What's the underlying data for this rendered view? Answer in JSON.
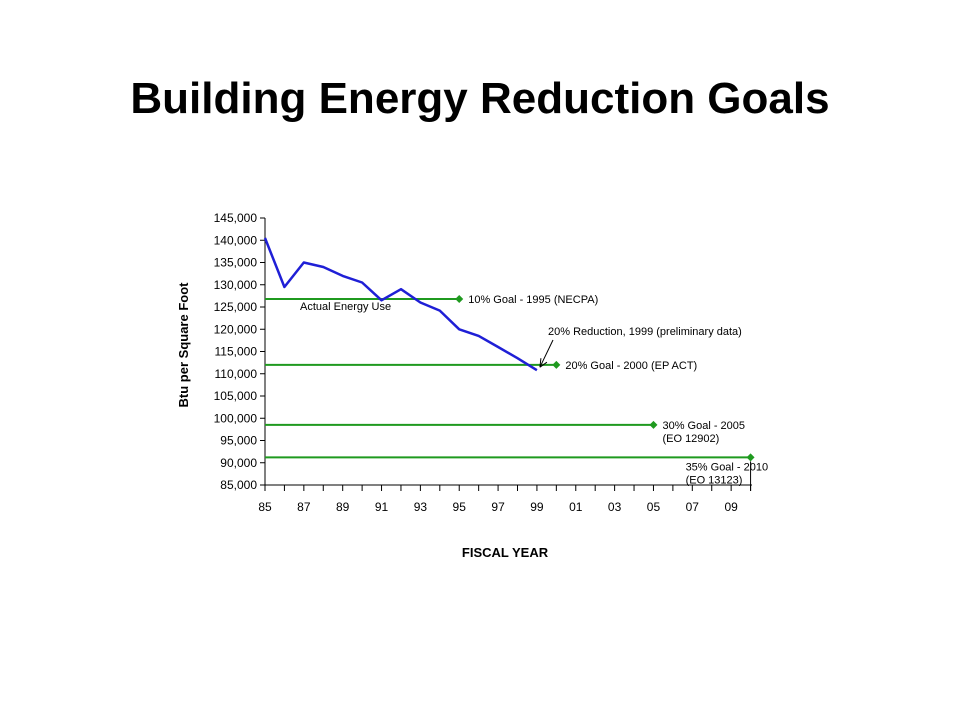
{
  "slide": {
    "title": "Building Energy Reduction Goals"
  },
  "colors": {
    "actual_line": "#1f1fd6",
    "goal_line": "#1f9a1f",
    "axis": "#000000"
  },
  "chart_data": {
    "type": "line",
    "title": "",
    "xlabel": "FISCAL YEAR",
    "ylabel": "Btu per Square Foot",
    "xlim": [
      1985,
      2011
    ],
    "ylim": [
      85000,
      145000
    ],
    "x_tick_labels": [
      "85",
      "87",
      "89",
      "91",
      "93",
      "95",
      "97",
      "99",
      "01",
      "03",
      "05",
      "07",
      "09"
    ],
    "x_tick_values": [
      1985,
      1987,
      1989,
      1991,
      1993,
      1995,
      1997,
      1999,
      2001,
      2003,
      2005,
      2007,
      2009
    ],
    "y_tick_labels": [
      "145,000",
      "140,000",
      "135,000",
      "130,000",
      "125,000",
      "120,000",
      "115,000",
      "110,000",
      "105,000",
      "100,000",
      "95,000",
      "90,000",
      "85,000"
    ],
    "y_tick_values": [
      145000,
      140000,
      135000,
      130000,
      125000,
      120000,
      115000,
      110000,
      105000,
      100000,
      95000,
      90000,
      85000
    ],
    "grid": false,
    "series": [
      {
        "name": "Actual Energy Use",
        "color": "#1f1fd6",
        "x": [
          1985,
          1986,
          1987,
          1988,
          1989,
          1990,
          1991,
          1992,
          1993,
          1994,
          1995,
          1996,
          1997,
          1998,
          1999
        ],
        "y": [
          140500,
          129500,
          135000,
          134000,
          132000,
          130500,
          126500,
          129000,
          126000,
          124200,
          120000,
          118500,
          116000,
          113500,
          110800
        ]
      }
    ],
    "goals": [
      {
        "label": "10% Goal - 1995 (NECPA)",
        "value": 126800,
        "end_year": 1995
      },
      {
        "label": "20% Goal - 2000 (EP ACT)",
        "value": 112000,
        "end_year": 2000
      },
      {
        "label": "30% Goal - 2005",
        "sublabel": "(EO 12902)",
        "value": 98500,
        "end_year": 2005
      },
      {
        "label": "35% Goal - 2010",
        "sublabel": "(EO 13123)",
        "value": 91200,
        "end_year": 2010
      }
    ],
    "annotations": [
      {
        "text": "20% Reduction, 1999 (preliminary data)",
        "x": 1999,
        "y": 110800
      }
    ]
  }
}
